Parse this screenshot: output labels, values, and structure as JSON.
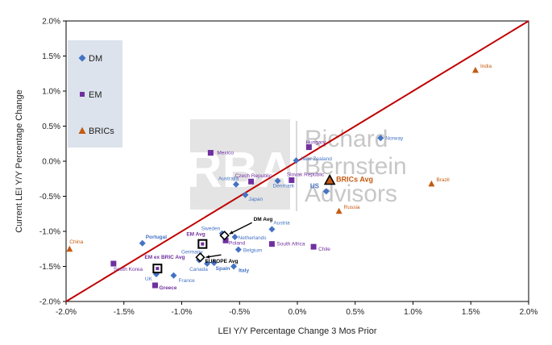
{
  "chart_data": {
    "type": "scatter",
    "title": "",
    "xlabel": "LEI Y/Y Percentage Change 3 Mos Prior",
    "ylabel": "Current LEI Y/Y Percentage Change",
    "xlim": [
      -0.02,
      0.02
    ],
    "ylim": [
      -0.02,
      0.02
    ],
    "xticks": [
      "-2.0%",
      "-1.5%",
      "-1.0%",
      "-0.5%",
      "0.0%",
      "0.5%",
      "1.0%",
      "1.5%",
      "2.0%"
    ],
    "yticks": [
      "2.0%",
      "1.5%",
      "1.0%",
      "0.5%",
      "0.0%",
      "-0.5%",
      "-1.0%",
      "-1.5%",
      "-2.0%"
    ],
    "diagonal": "y = x",
    "grid": false,
    "legend": [
      {
        "name": "DM",
        "marker": "diamond",
        "color": "#4472C4"
      },
      {
        "name": "EM",
        "marker": "square",
        "color": "#7030A0"
      },
      {
        "name": "BRICs",
        "marker": "triangle",
        "color": "#C55A11"
      }
    ],
    "series": [
      {
        "name": "DM",
        "points": [
          {
            "label": "Norway",
            "x": 0.0072,
            "y": 0.0033
          },
          {
            "label": "New Zealand",
            "x": -0.0001,
            "y": 0.0001
          },
          {
            "label": "Australia",
            "x": -0.0053,
            "y": -0.0033
          },
          {
            "label": "Denmark",
            "x": -0.0017,
            "y": -0.0028
          },
          {
            "label": "Japan",
            "x": -0.0045,
            "y": -0.0048
          },
          {
            "label": "US",
            "x": 0.0025,
            "y": -0.0043
          },
          {
            "label": "Austria",
            "x": -0.0022,
            "y": -0.0097
          },
          {
            "label": "Sweden",
            "x": -0.0065,
            "y": -0.0103
          },
          {
            "label": "Netherlands",
            "x": -0.0054,
            "y": -0.0108
          },
          {
            "label": "Belgium",
            "x": -0.0051,
            "y": -0.0126
          },
          {
            "label": "Portugal",
            "x": -0.0134,
            "y": -0.0117
          },
          {
            "label": "Germany",
            "x": -0.0085,
            "y": -0.0141
          },
          {
            "label": "Canada",
            "x": -0.0078,
            "y": -0.0146
          },
          {
            "label": "Spain",
            "x": -0.0072,
            "y": -0.0145
          },
          {
            "label": "Italy",
            "x": -0.0055,
            "y": -0.015
          },
          {
            "label": "France",
            "x": -0.0107,
            "y": -0.0163
          },
          {
            "label": "UK",
            "x": -0.0122,
            "y": -0.0161
          }
        ]
      },
      {
        "name": "EM",
        "points": [
          {
            "label": "Hungary",
            "x": 0.001,
            "y": 0.002
          },
          {
            "label": "Mexico",
            "x": -0.0075,
            "y": 0.0012
          },
          {
            "label": "Czech Republic",
            "x": -0.004,
            "y": -0.0029
          },
          {
            "label": "Slovak Republic",
            "x": -0.0005,
            "y": -0.0027
          },
          {
            "label": "Poland",
            "x": -0.0062,
            "y": -0.0113
          },
          {
            "label": "South Africa",
            "x": -0.0022,
            "y": -0.0118
          },
          {
            "label": "Chile",
            "x": 0.0014,
            "y": -0.0122
          },
          {
            "label": "South Korea",
            "x": -0.0159,
            "y": -0.0146
          },
          {
            "label": "Greece",
            "x": -0.0123,
            "y": -0.0177
          }
        ]
      },
      {
        "name": "BRICs",
        "points": [
          {
            "label": "India",
            "x": 0.0154,
            "y": 0.013
          },
          {
            "label": "Brazil",
            "x": 0.0116,
            "y": -0.0032
          },
          {
            "label": "Russia",
            "x": 0.0036,
            "y": -0.0071
          },
          {
            "label": "China",
            "x": -0.0197,
            "y": -0.0125
          }
        ]
      }
    ],
    "averages": [
      {
        "label": "DM Avg",
        "x": -0.0063,
        "y": -0.0106,
        "marker": "diamond-outline"
      },
      {
        "label": "EM Avg",
        "x": -0.0082,
        "y": -0.0118,
        "marker": "square-outline"
      },
      {
        "label": "EUROPE Avg",
        "x": -0.0084,
        "y": -0.0137,
        "marker": "diamond-outline"
      },
      {
        "label": "EM ex BRIC Avg",
        "x": -0.0121,
        "y": -0.0153,
        "marker": "square-outline"
      },
      {
        "label": "BRICs Avg",
        "x": 0.0028,
        "y": -0.0027,
        "marker": "triangle-outline"
      }
    ]
  },
  "watermark": {
    "logo": "RBA",
    "line1": "Richard",
    "line2": "Bernstein",
    "line3": "Advisors"
  },
  "colors": {
    "dm": "#4472C4",
    "em": "#7030A0",
    "bric": "#C55A11",
    "diagonal": "#C00000",
    "legend_bg": "#DCE3EC"
  }
}
